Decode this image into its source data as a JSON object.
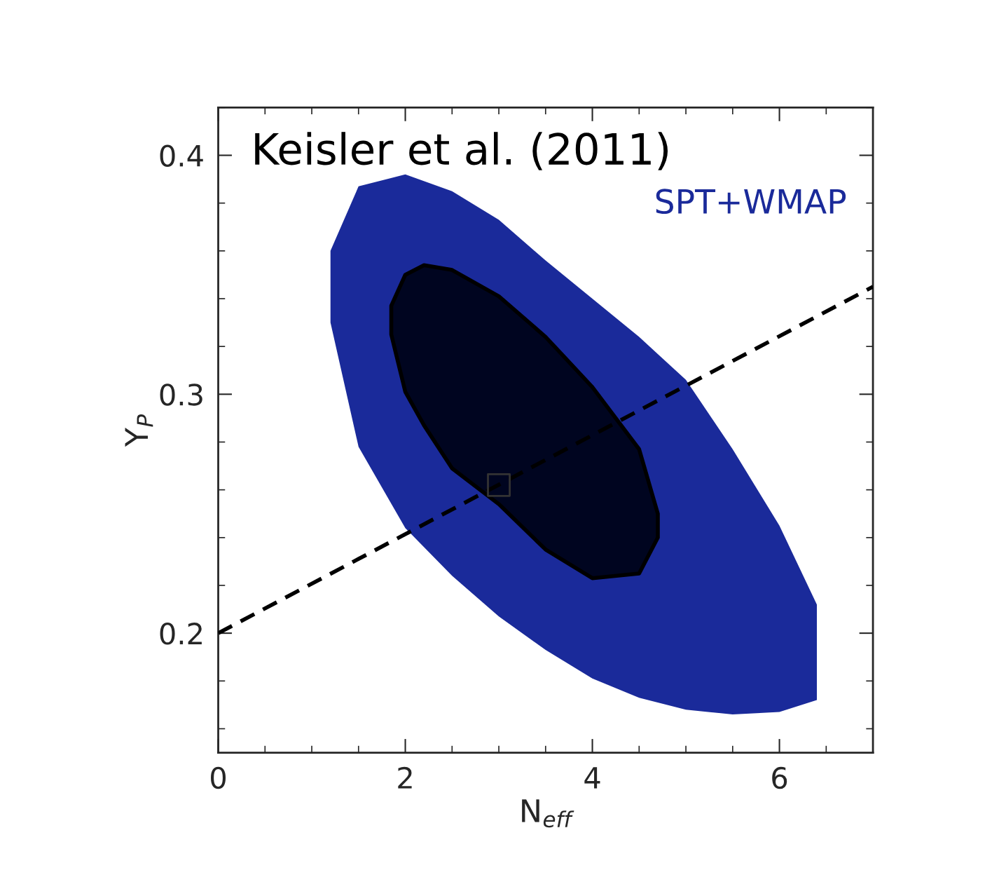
{
  "chart_data": {
    "type": "area",
    "xlabel": "N$_{eff}$",
    "ylabel": "Y$_{P}$",
    "annotations": [
      "Keisler et al. (2011)",
      "SPT+WMAP"
    ],
    "xlim": [
      0,
      7
    ],
    "ylim": [
      0.15,
      0.42
    ],
    "xticks": [
      0,
      2,
      4,
      6
    ],
    "yticks": [
      0.2,
      0.3,
      0.4
    ],
    "grid": false,
    "legend": false,
    "series": [
      {
        "color": "#1a2a9a",
        "x": [
          1.2,
          1.5,
          2.0,
          2.5,
          3.0,
          3.5,
          4.0,
          4.5,
          5.0,
          5.5,
          6.0,
          6.4,
          6.4,
          6.0,
          5.5,
          5.0,
          4.5,
          4.0,
          3.5,
          3.0,
          2.5,
          2.0,
          1.5,
          1.2
        ],
        "values": [
          0.36,
          0.387,
          0.392,
          0.385,
          0.373,
          0.356,
          0.34,
          0.324,
          0.306,
          0.277,
          0.245,
          0.212,
          0.172,
          0.167,
          0.166,
          0.168,
          0.173,
          0.181,
          0.193,
          0.207,
          0.224,
          0.244,
          0.278,
          0.33
        ]
      },
      {
        "color": "#000520",
        "x": [
          1.85,
          2.0,
          2.2,
          2.5,
          3.0,
          3.5,
          4.0,
          4.5,
          4.7,
          4.7,
          4.5,
          4.0,
          3.5,
          3.0,
          2.5,
          2.2,
          2.0,
          1.85
        ],
        "values": [
          0.337,
          0.35,
          0.354,
          0.352,
          0.341,
          0.324,
          0.303,
          0.277,
          0.25,
          0.24,
          0.225,
          0.223,
          0.235,
          0.254,
          0.269,
          0.287,
          0.301,
          0.325
        ]
      },
      {
        "type": "line",
        "color": "#000000",
        "line_style": "dashed",
        "x": [
          0,
          7
        ],
        "values": [
          0.2,
          0.345
        ]
      },
      {
        "type": "scatter",
        "color": "#333333",
        "marker": "square",
        "x": [
          3.0
        ],
        "values": [
          0.262
        ]
      }
    ]
  }
}
